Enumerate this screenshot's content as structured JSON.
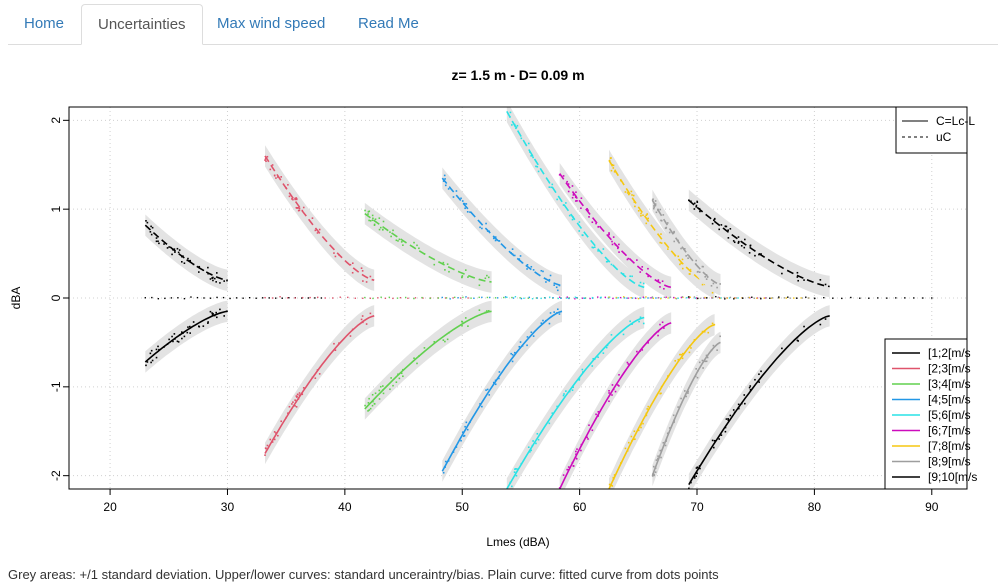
{
  "nav": {
    "tabs": [
      {
        "label": "Home",
        "active": false
      },
      {
        "label": "Uncertainties",
        "active": true
      },
      {
        "label": "Max wind speed",
        "active": false
      },
      {
        "label": "Read Me",
        "active": false
      }
    ]
  },
  "caption": "Grey areas: +/1 standard deviation. Upper/lower curves: standard unceraintry/bias. Plain curve: fitted curve from dots points",
  "chart_data": {
    "type": "line",
    "title": "z= 1.5 m - D= 0.09 m",
    "xlabel": "Lmes (dBA)",
    "ylabel": "dBA",
    "xlim": [
      16.5,
      93
    ],
    "ylim": [
      -2.15,
      2.15
    ],
    "xticks": [
      "20",
      "30",
      "40",
      "50",
      "60",
      "70",
      "80",
      "90"
    ],
    "yticks": [
      "-2",
      "-1",
      "0",
      "1",
      "2"
    ],
    "grid": true,
    "legend_linetype": {
      "placement": "top-right",
      "entries": [
        {
          "label": "C=Lc-L",
          "style": "solid"
        },
        {
          "label": "uC",
          "style": "dashed"
        }
      ]
    },
    "legend_classes": {
      "placement": "bottom-right"
    },
    "series": [
      {
        "name": "[1;2[m/s",
        "color": "#000000",
        "x_start": 23,
        "x_end": 30,
        "y_upper_start": 0.82,
        "y_upper_end": 0.2,
        "y_lower_start": -0.72,
        "y_lower_end": -0.15
      },
      {
        "name": "[2;3[m/s",
        "color": "#df536b",
        "x_start": 33.2,
        "x_end": 42.5,
        "y_upper_start": 1.6,
        "y_upper_end": 0.2,
        "y_lower_start": -1.75,
        "y_lower_end": -0.2
      },
      {
        "name": "[3;4[m/s",
        "color": "#61d04f",
        "x_start": 41.7,
        "x_end": 52.5,
        "y_upper_start": 0.95,
        "y_upper_end": 0.18,
        "y_lower_start": -1.25,
        "y_lower_end": -0.15
      },
      {
        "name": "[4;5[m/s",
        "color": "#2297e6",
        "x_start": 48.3,
        "x_end": 58.5,
        "y_upper_start": 1.35,
        "y_upper_end": 0.14,
        "y_lower_start": -1.95,
        "y_lower_end": -0.15
      },
      {
        "name": "[5;6[m/s",
        "color": "#28e2e5",
        "x_start": 53.8,
        "x_end": 65.5,
        "y_upper_start": 2.1,
        "y_upper_end": 0.12,
        "y_lower_start": -2.15,
        "y_lower_end": -0.22
      },
      {
        "name": "[6;7[m/s",
        "color": "#cd0bbc",
        "x_start": 58.3,
        "x_end": 67.8,
        "y_upper_start": 1.4,
        "y_upper_end": 0.12,
        "y_lower_start": -2.15,
        "y_lower_end": -0.28
      },
      {
        "name": "[7;8[m/s",
        "color": "#f5c710",
        "x_start": 62.5,
        "x_end": 71.5,
        "y_upper_start": 1.55,
        "y_upper_end": 0.12,
        "y_lower_start": -2.15,
        "y_lower_end": -0.3
      },
      {
        "name": "[8;9[m/s",
        "color": "#9e9e9e",
        "x_start": 66.2,
        "x_end": 72,
        "y_upper_start": 1.1,
        "y_upper_end": 0.15,
        "y_lower_start": -2.0,
        "y_lower_end": -0.5
      },
      {
        "name": "[9;10[m/s",
        "color": "#000000",
        "x_start": 69.3,
        "x_end": 81.3,
        "y_upper_start": 1.1,
        "y_upper_end": 0.13,
        "y_lower_start": -2.1,
        "y_lower_end": -0.2
      }
    ]
  }
}
